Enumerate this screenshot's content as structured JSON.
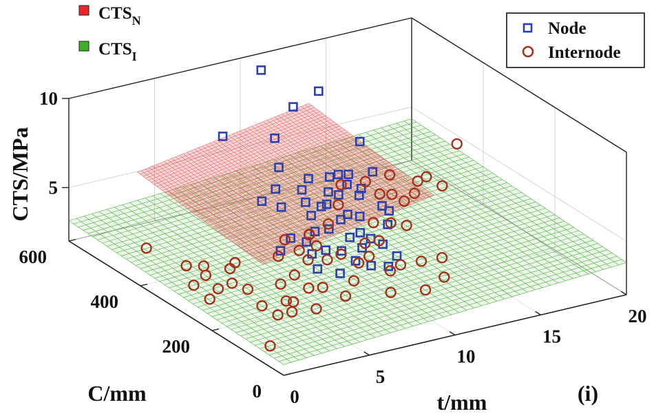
{
  "chart_data": {
    "type": "scatter",
    "dimensions": "3d",
    "panel_label": "(i)",
    "axes": {
      "x": {
        "label": "t/mm",
        "range": [
          0,
          20
        ],
        "ticks": [
          "0",
          "5",
          "10",
          "15",
          "20"
        ]
      },
      "y": {
        "label": "C/mm",
        "range": [
          0,
          600
        ],
        "ticks": [
          "0",
          "200",
          "400",
          "600"
        ]
      },
      "z": {
        "label": "CTS/MPa",
        "range": [
          2,
          10
        ],
        "ticks": [
          "5",
          "10"
        ]
      }
    },
    "grid": true,
    "legends": {
      "surfaces": {
        "placement": "top-left",
        "items": [
          {
            "base": "CTS",
            "sub": "N",
            "color": "#e8262c"
          },
          {
            "base": "CTS",
            "sub": "I",
            "color": "#3fae2a"
          }
        ]
      },
      "markers": {
        "placement": "top-right",
        "items": [
          {
            "label": "Node",
            "marker": "square",
            "color": "#2b3fae"
          },
          {
            "label": "Internode",
            "marker": "circle",
            "color": "#a5301b"
          }
        ]
      }
    },
    "surfaces": [
      {
        "name": "CTS_N",
        "color": "#e8262c",
        "intercept": 3.0,
        "slope_t": 0.16,
        "slope_c": 0.0022,
        "t_range": [
          4,
          14
        ],
        "c_range": [
          250,
          600
        ]
      },
      {
        "name": "CTS_I",
        "color": "#3fae2a",
        "intercept": 2.6,
        "slope_t": 0.06,
        "slope_c": 0.0009,
        "t_range": [
          0,
          20
        ],
        "c_range": [
          0,
          600
        ]
      }
    ],
    "series": [
      {
        "name": "Node",
        "marker": "square",
        "points": [
          [
            11.0,
            310,
            6.1
          ],
          [
            9.5,
            330,
            6.0
          ],
          [
            10.5,
            350,
            6.5
          ],
          [
            12.0,
            280,
            5.0
          ],
          [
            7.5,
            420,
            4.8
          ],
          [
            9.0,
            380,
            5.6
          ],
          [
            9.8,
            400,
            5.8
          ],
          [
            10.2,
            360,
            6.3
          ],
          [
            10.8,
            340,
            6.0
          ],
          [
            8.8,
            360,
            5.2
          ],
          [
            9.2,
            320,
            5.5
          ],
          [
            10.0,
            300,
            5.0
          ],
          [
            11.3,
            330,
            5.4
          ],
          [
            10.5,
            290,
            4.9
          ],
          [
            9.6,
            300,
            4.8
          ],
          [
            8.5,
            330,
            4.9
          ],
          [
            7.8,
            380,
            4.9
          ],
          [
            8.3,
            420,
            5.3
          ],
          [
            9.3,
            340,
            5.1
          ],
          [
            12.5,
            350,
            6.2
          ],
          [
            11.8,
            290,
            5.2
          ],
          [
            9.9,
            260,
            4.5
          ],
          [
            8.7,
            290,
            4.6
          ],
          [
            10.3,
            250,
            4.2
          ],
          [
            11.5,
            260,
            4.6
          ],
          [
            7.6,
            300,
            4.0
          ],
          [
            8.1,
            270,
            3.8
          ],
          [
            6.5,
            320,
            3.5
          ],
          [
            7.3,
            330,
            3.9
          ],
          [
            9.5,
            270,
            4.2
          ],
          [
            10.8,
            240,
            3.9
          ],
          [
            8.6,
            250,
            3.9
          ],
          [
            9.0,
            230,
            3.5
          ],
          [
            8.1,
            230,
            3.0
          ],
          [
            7.2,
            250,
            3.2
          ],
          [
            9.7,
            220,
            3.2
          ],
          [
            10.5,
            210,
            3.1
          ],
          [
            11.3,
            360,
            6.2
          ],
          [
            12.8,
            400,
            7.2
          ],
          [
            9.3,
            470,
            7.3
          ],
          [
            11.0,
            500,
            8.3
          ],
          [
            10.8,
            580,
            9.4
          ],
          [
            12.9,
            520,
            8.5
          ],
          [
            7.1,
            510,
            7.4
          ],
          [
            8.7,
            430,
            6.3
          ],
          [
            8.3,
            310,
            4.3
          ],
          [
            10.1,
            330,
            5.7
          ],
          [
            9.8,
            250,
            3.8
          ],
          [
            11.2,
            220,
            3.4
          ],
          [
            7.5,
            280,
            3.6
          ]
        ]
      },
      {
        "name": "Internode",
        "marker": "circle",
        "points": [
          [
            1.6,
            460,
            3.0
          ],
          [
            3.0,
            350,
            1.2
          ],
          [
            3.7,
            360,
            1.5
          ],
          [
            3.3,
            430,
            2.0
          ],
          [
            4.6,
            370,
            2.3
          ],
          [
            3.9,
            410,
            2.1
          ],
          [
            5.1,
            380,
            2.4
          ],
          [
            4.3,
            350,
            1.8
          ],
          [
            2.9,
            390,
            1.5
          ],
          [
            3.6,
            390,
            1.9
          ],
          [
            4.8,
            330,
            1.6
          ],
          [
            5.0,
            300,
            1.0
          ],
          [
            6.0,
            280,
            1.3
          ],
          [
            6.3,
            310,
            1.8
          ],
          [
            5.3,
            270,
            0.8
          ],
          [
            3.6,
            210,
            0.2
          ],
          [
            7.1,
            270,
            1.9
          ],
          [
            6.9,
            300,
            2.3
          ],
          [
            7.9,
            310,
            2.8
          ],
          [
            8.6,
            320,
            3.3
          ],
          [
            7.0,
            350,
            2.7
          ],
          [
            7.8,
            370,
            3.2
          ],
          [
            9.2,
            280,
            3.2
          ],
          [
            9.6,
            250,
            3.0
          ],
          [
            8.9,
            230,
            2.4
          ],
          [
            10.0,
            240,
            3.4
          ],
          [
            11.0,
            260,
            3.8
          ],
          [
            10.6,
            280,
            3.5
          ],
          [
            11.5,
            300,
            4.2
          ],
          [
            12.1,
            280,
            4.3
          ],
          [
            12.6,
            260,
            4.3
          ],
          [
            13.3,
            300,
            5.0
          ],
          [
            13.9,
            300,
            5.3
          ],
          [
            14.8,
            310,
            5.9
          ],
          [
            15.1,
            280,
            5.7
          ],
          [
            17.0,
            330,
            7.0
          ],
          [
            13.5,
            350,
            5.8
          ],
          [
            12.5,
            370,
            5.4
          ],
          [
            11.5,
            390,
            5.2
          ],
          [
            10.5,
            350,
            4.8
          ],
          [
            9.5,
            330,
            4.2
          ],
          [
            8.6,
            340,
            3.7
          ],
          [
            12.5,
            330,
            5.2
          ],
          [
            13.0,
            320,
            5.2
          ],
          [
            11.0,
            200,
            3.2
          ],
          [
            12.0,
            190,
            3.3
          ],
          [
            13.0,
            180,
            3.4
          ],
          [
            8.8,
            350,
            3.5
          ],
          [
            10.4,
            200,
            3.0
          ],
          [
            6.5,
            220,
            1.5
          ],
          [
            5.5,
            240,
            1.3
          ],
          [
            6.0,
            260,
            1.5
          ],
          [
            7.5,
            250,
            2.1
          ],
          [
            8.0,
            210,
            2.0
          ],
          [
            9.8,
            170,
            2.3
          ],
          [
            12.5,
            150,
            2.8
          ],
          [
            11.2,
            140,
            2.5
          ],
          [
            7.8,
            330,
            3.1
          ],
          [
            8.6,
            290,
            2.9
          ],
          [
            14.5,
            320,
            5.6
          ]
        ]
      }
    ]
  }
}
